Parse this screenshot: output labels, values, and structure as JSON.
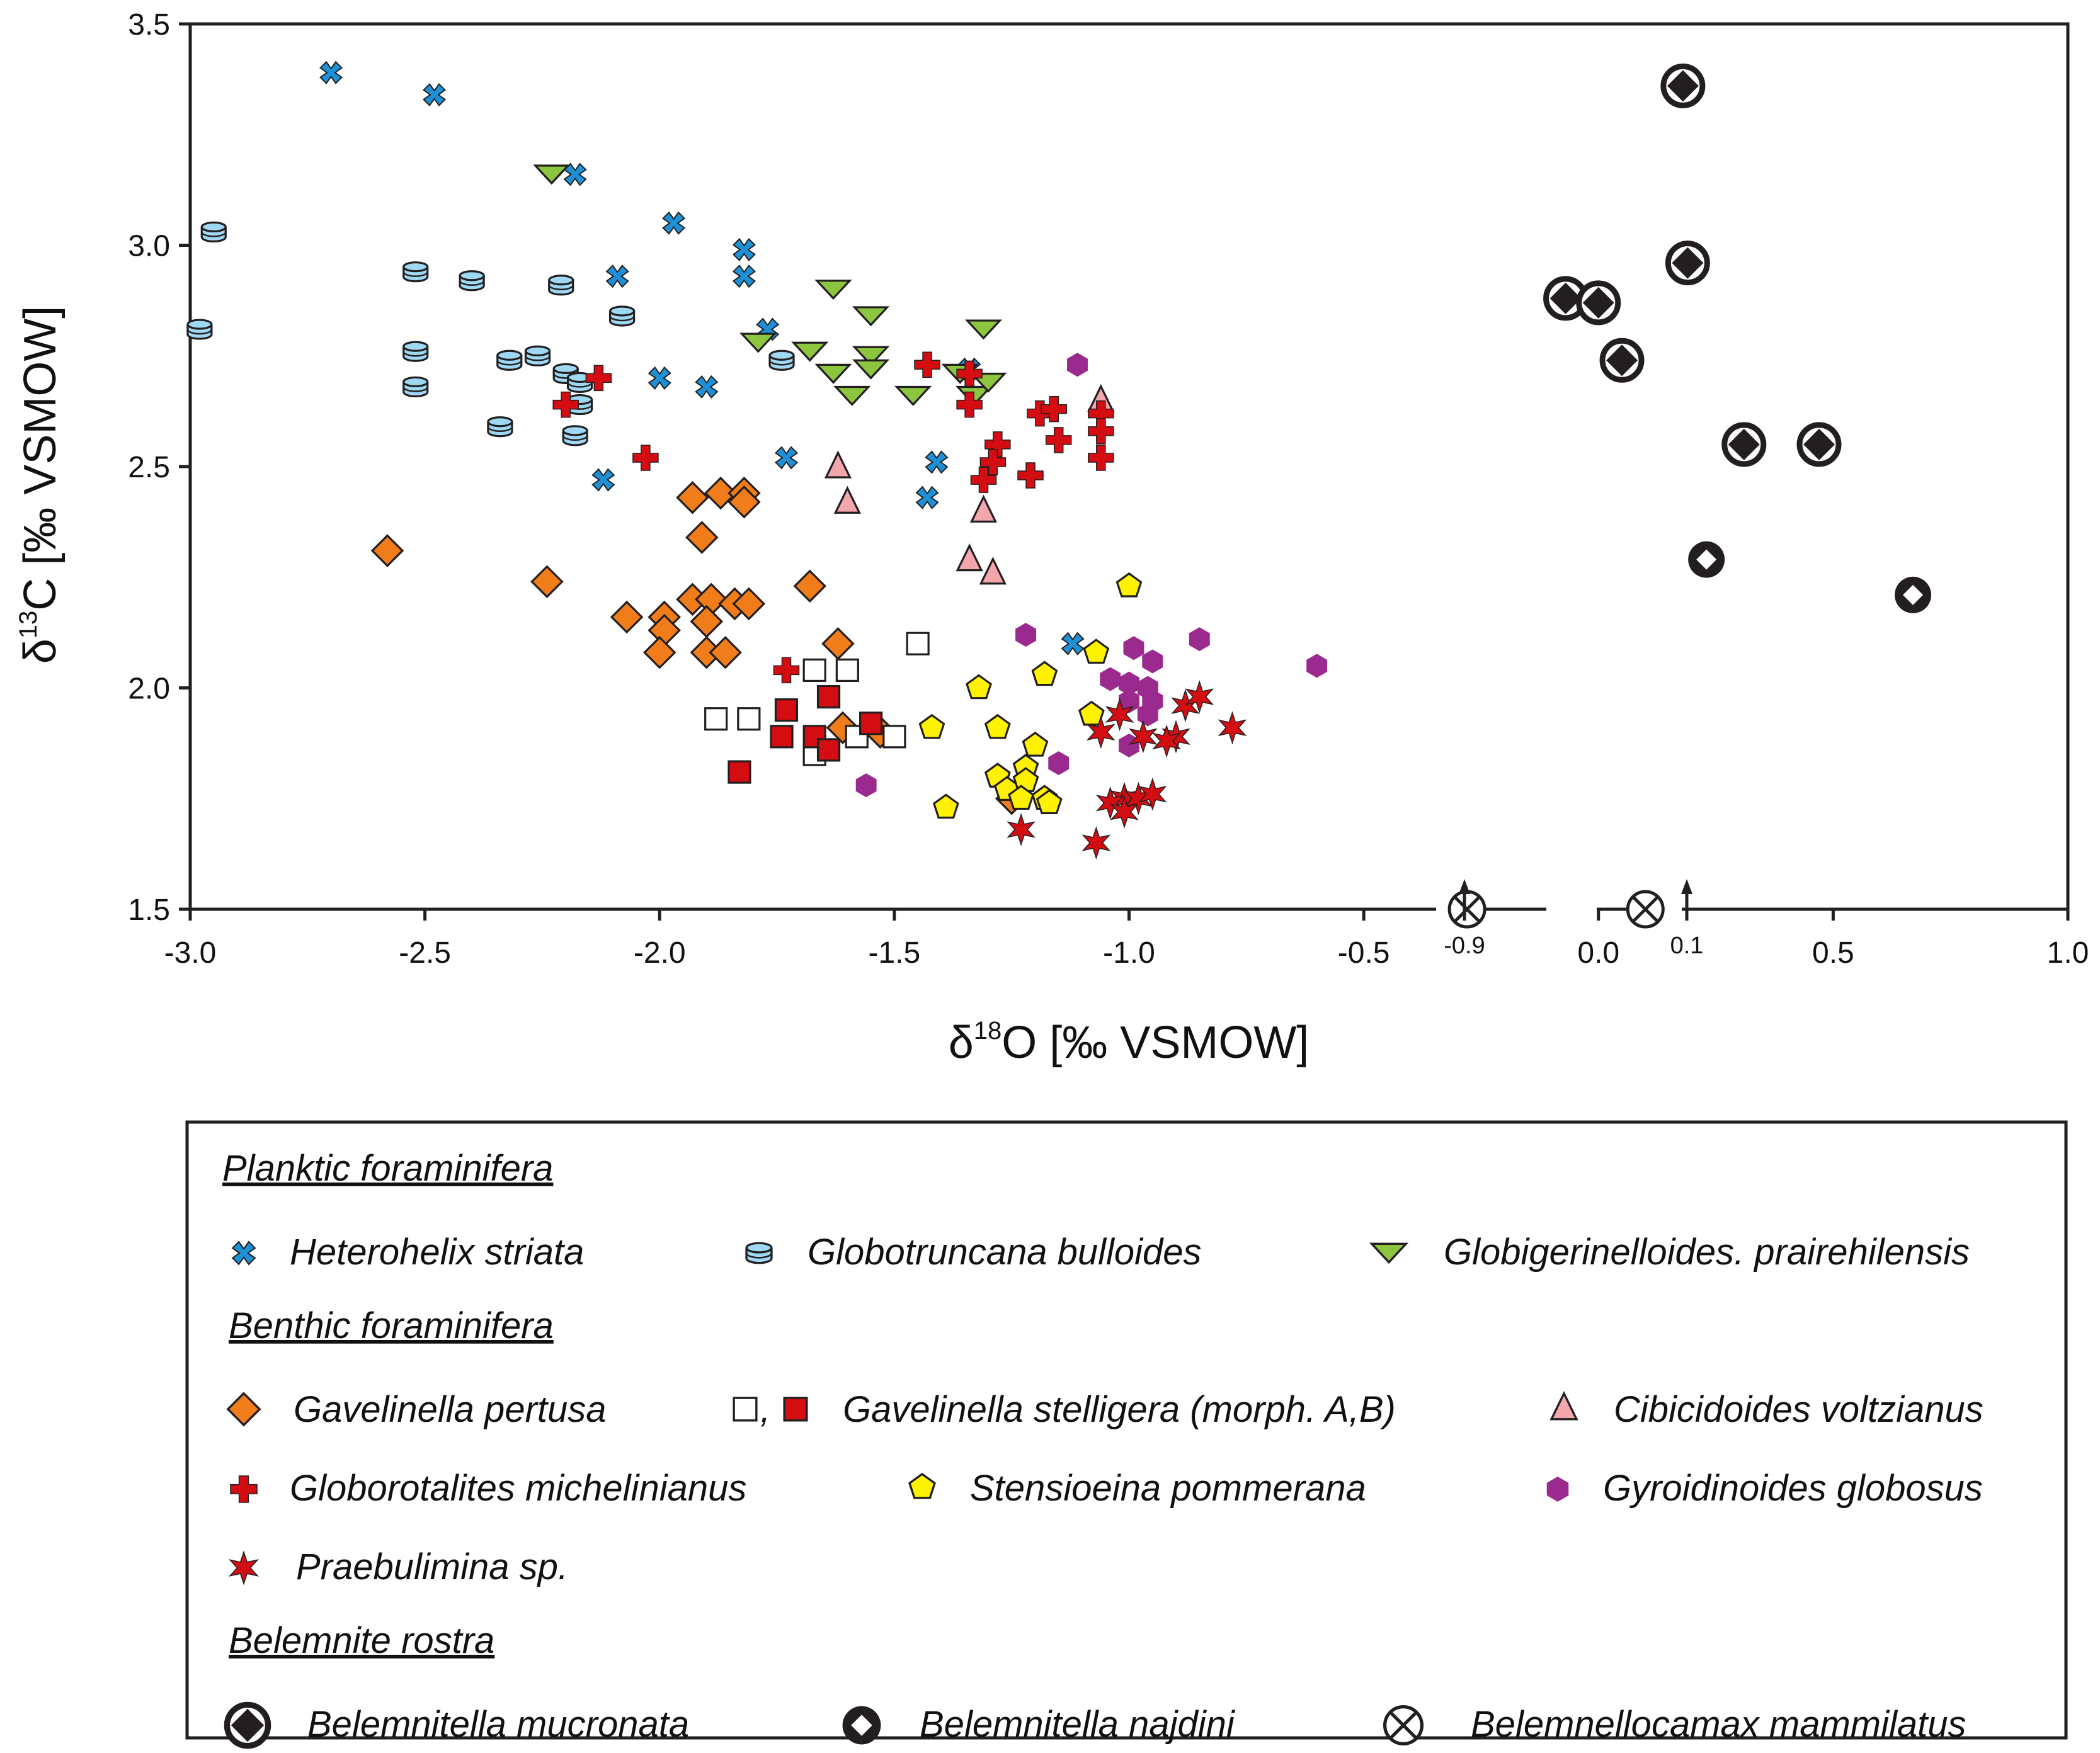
{
  "chart_data": {
    "type": "scatter",
    "xlabel": "δ18O [‰ VSMOW]",
    "ylabel": "δ13C [‰ VSMOW]",
    "xlim": [
      -3.0,
      1.0
    ],
    "ylim": [
      1.5,
      3.5
    ],
    "x_ticks": [
      "-3.0",
      "-2.5",
      "-2.0",
      "-1.5",
      "-1.0",
      "-0.5",
      "0.0",
      "0.5",
      "1.0"
    ],
    "y_ticks": [
      "1.5",
      "2.0",
      "2.5",
      "3.0",
      "3.5"
    ],
    "x_tick_values": [
      -3.0,
      -2.5,
      -2.0,
      -1.5,
      -1.0,
      -0.5,
      0.0,
      0.5,
      1.0
    ],
    "y_tick_values": [
      1.5,
      2.0,
      2.5,
      3.0,
      3.5
    ],
    "annotations": [
      {
        "text": "-0.9",
        "x": -0.28,
        "y": 1.5,
        "arrow": "up"
      },
      {
        "text": "0.1",
        "x": 0.18,
        "y": 1.5,
        "arrow": "up"
      }
    ],
    "legend": {
      "groups": [
        {
          "title": "Planktic foraminifera",
          "entries": [
            "Heterohelix striata",
            "Globotruncana bulloides",
            "Globigerinelloides. prairehilensis"
          ]
        },
        {
          "title": "Benthic foraminifera",
          "entries": [
            "Gavelinella pertusa",
            "Gavelinella stelligera (morph. A,B)",
            "Cibicidoides voltzianus",
            "Globorotalites michelinianus",
            "Stensioeina pommerana",
            "Gyroidinoides globosus",
            "Praebulimina sp."
          ]
        },
        {
          "title": "Belemnite rostra",
          "entries": [
            "Belemnitella mucronata",
            "Belemnitella najdini",
            "Belemnellocamax mammilatus"
          ]
        }
      ]
    },
    "series": [
      {
        "name": "Heterohelix striata",
        "marker": "x",
        "color": "#1e90d6",
        "points": [
          [
            -2.7,
            3.39
          ],
          [
            -2.48,
            3.34
          ],
          [
            -2.18,
            3.16
          ],
          [
            -1.97,
            3.05
          ],
          [
            -1.82,
            2.99
          ],
          [
            -1.82,
            2.93
          ],
          [
            -2.09,
            2.93
          ],
          [
            -1.77,
            2.81
          ],
          [
            -2.0,
            2.7
          ],
          [
            -1.9,
            2.68
          ],
          [
            -1.34,
            2.72
          ],
          [
            -2.12,
            2.47
          ],
          [
            -1.73,
            2.52
          ],
          [
            -1.41,
            2.51
          ],
          [
            -1.43,
            2.43
          ],
          [
            -1.12,
            2.1
          ]
        ]
      },
      {
        "name": "Globotruncana bulloides",
        "marker": "cylinder",
        "color": "#9fd8f3",
        "points": [
          [
            -2.95,
            3.03
          ],
          [
            -2.98,
            2.81
          ],
          [
            -2.52,
            2.94
          ],
          [
            -2.4,
            2.92
          ],
          [
            -2.21,
            2.91
          ],
          [
            -2.08,
            2.84
          ],
          [
            -2.52,
            2.76
          ],
          [
            -2.26,
            2.75
          ],
          [
            -2.32,
            2.74
          ],
          [
            -2.2,
            2.71
          ],
          [
            -2.17,
            2.69
          ],
          [
            -2.52,
            2.68
          ],
          [
            -2.17,
            2.64
          ],
          [
            -2.34,
            2.59
          ],
          [
            -2.18,
            2.57
          ],
          [
            -1.74,
            2.74
          ]
        ]
      },
      {
        "name": "Globigerinelloides. prairehilensis",
        "marker": "triangle-down",
        "color": "#8cc63f",
        "points": [
          [
            -2.23,
            3.16
          ],
          [
            -1.63,
            2.9
          ],
          [
            -1.55,
            2.84
          ],
          [
            -1.31,
            2.81
          ],
          [
            -1.79,
            2.78
          ],
          [
            -1.68,
            2.76
          ],
          [
            -1.55,
            2.75
          ],
          [
            -1.63,
            2.71
          ],
          [
            -1.59,
            2.66
          ],
          [
            -1.46,
            2.66
          ],
          [
            -1.36,
            2.71
          ],
          [
            -1.33,
            2.66
          ],
          [
            -1.3,
            2.69
          ],
          [
            -1.55,
            2.72
          ]
        ]
      },
      {
        "name": "Gavelinella pertusa",
        "marker": "diamond",
        "color": "#f07d1a",
        "points": [
          [
            -2.58,
            2.31
          ],
          [
            -2.24,
            2.24
          ],
          [
            -1.93,
            2.43
          ],
          [
            -1.87,
            2.44
          ],
          [
            -1.82,
            2.44
          ],
          [
            -1.82,
            2.42
          ],
          [
            -1.91,
            2.34
          ],
          [
            -1.68,
            2.23
          ],
          [
            -2.07,
            2.16
          ],
          [
            -1.99,
            2.16
          ],
          [
            -1.93,
            2.2
          ],
          [
            -1.89,
            2.2
          ],
          [
            -1.84,
            2.19
          ],
          [
            -1.81,
            2.19
          ],
          [
            -1.9,
            2.15
          ],
          [
            -1.99,
            2.13
          ],
          [
            -2.0,
            2.08
          ],
          [
            -1.9,
            2.08
          ],
          [
            -1.86,
            2.08
          ],
          [
            -1.62,
            2.1
          ],
          [
            -1.61,
            1.91
          ],
          [
            -1.53,
            1.9
          ],
          [
            -1.25,
            1.75
          ]
        ]
      },
      {
        "name": "Gavelinella stelligera (morph. A)",
        "marker": "square-open",
        "color": "#ffffff",
        "points": [
          [
            -1.45,
            2.1
          ],
          [
            -1.67,
            2.04
          ],
          [
            -1.6,
            2.04
          ],
          [
            -1.88,
            1.93
          ],
          [
            -1.81,
            1.93
          ],
          [
            -1.67,
            1.85
          ],
          [
            -1.58,
            1.89
          ],
          [
            -1.5,
            1.89
          ]
        ]
      },
      {
        "name": "Gavelinella stelligera (morph. B)",
        "marker": "square",
        "color": "#d40d12",
        "points": [
          [
            -1.73,
            1.95
          ],
          [
            -1.74,
            1.89
          ],
          [
            -1.64,
            1.98
          ],
          [
            -1.67,
            1.89
          ],
          [
            -1.64,
            1.86
          ],
          [
            -1.55,
            1.92
          ],
          [
            -1.83,
            1.81
          ]
        ]
      },
      {
        "name": "Cibicidoides voltzianus",
        "marker": "triangle-up",
        "color": "#f4a6ad",
        "points": [
          [
            -1.06,
            2.65
          ],
          [
            -1.62,
            2.5
          ],
          [
            -1.6,
            2.42
          ],
          [
            -1.31,
            2.4
          ],
          [
            -1.34,
            2.29
          ],
          [
            -1.29,
            2.26
          ]
        ]
      },
      {
        "name": "Globorotalites michelinianus",
        "marker": "plus",
        "color": "#d40d12",
        "points": [
          [
            -2.13,
            2.7
          ],
          [
            -2.2,
            2.64
          ],
          [
            -2.03,
            2.52
          ],
          [
            -1.43,
            2.73
          ],
          [
            -1.34,
            2.71
          ],
          [
            -1.34,
            2.64
          ],
          [
            -1.19,
            2.62
          ],
          [
            -1.16,
            2.63
          ],
          [
            -1.06,
            2.62
          ],
          [
            -1.06,
            2.58
          ],
          [
            -1.28,
            2.55
          ],
          [
            -1.15,
            2.56
          ],
          [
            -1.29,
            2.51
          ],
          [
            -1.31,
            2.47
          ],
          [
            -1.21,
            2.48
          ],
          [
            -1.06,
            2.52
          ],
          [
            -1.73,
            2.04
          ]
        ]
      },
      {
        "name": "Stensioeina pommerana",
        "marker": "pentagon",
        "color": "#fff200",
        "points": [
          [
            -1.0,
            2.23
          ],
          [
            -1.32,
            2.0
          ],
          [
            -1.18,
            2.03
          ],
          [
            -1.07,
            2.08
          ],
          [
            -1.08,
            1.94
          ],
          [
            -1.42,
            1.91
          ],
          [
            -1.28,
            1.91
          ],
          [
            -1.2,
            1.87
          ],
          [
            -1.22,
            1.82
          ],
          [
            -1.28,
            1.8
          ],
          [
            -1.26,
            1.77
          ],
          [
            -1.22,
            1.79
          ],
          [
            -1.23,
            1.75
          ],
          [
            -1.18,
            1.75
          ],
          [
            -1.17,
            1.74
          ],
          [
            -1.39,
            1.73
          ]
        ]
      },
      {
        "name": "Gyroidinoides globosus",
        "marker": "hexagon",
        "color": "#9b2a8f",
        "points": [
          [
            -1.11,
            2.73
          ],
          [
            -1.22,
            2.12
          ],
          [
            -0.99,
            2.09
          ],
          [
            -0.85,
            2.11
          ],
          [
            -0.6,
            2.05
          ],
          [
            -0.95,
            2.06
          ],
          [
            -1.04,
            2.02
          ],
          [
            -1.0,
            2.01
          ],
          [
            -0.96,
            2.0
          ],
          [
            -1.0,
            1.97
          ],
          [
            -0.96,
            1.94
          ],
          [
            -1.0,
            1.87
          ],
          [
            -1.15,
            1.83
          ],
          [
            -1.56,
            1.78
          ],
          [
            -0.95,
            1.97
          ]
        ]
      },
      {
        "name": "Praebulimina sp.",
        "marker": "star",
        "color": "#d40d12",
        "points": [
          [
            -1.06,
            1.9
          ],
          [
            -1.02,
            1.94
          ],
          [
            -0.97,
            1.89
          ],
          [
            -0.9,
            1.89
          ],
          [
            -0.88,
            1.96
          ],
          [
            -0.85,
            1.98
          ],
          [
            -0.78,
            1.91
          ],
          [
            -1.01,
            1.75
          ],
          [
            -1.04,
            1.74
          ],
          [
            -0.98,
            1.75
          ],
          [
            -0.95,
            1.76
          ],
          [
            -1.01,
            1.72
          ],
          [
            -1.23,
            1.68
          ],
          [
            -1.07,
            1.65
          ],
          [
            -0.92,
            1.88
          ]
        ]
      },
      {
        "name": "Belemnitella mucronata",
        "marker": "circle-diamond-filled",
        "color": "#231f20",
        "points": [
          [
            0.18,
            3.36
          ],
          [
            0.19,
            2.96
          ],
          [
            -0.07,
            2.88
          ],
          [
            0.0,
            2.87
          ],
          [
            0.05,
            2.74
          ],
          [
            0.31,
            2.55
          ],
          [
            0.47,
            2.55
          ]
        ]
      },
      {
        "name": "Belemnitella najdini",
        "marker": "circle-diamond-open",
        "color": "#231f20",
        "points": [
          [
            0.23,
            2.29
          ],
          [
            0.67,
            2.21
          ]
        ]
      },
      {
        "name": "Belemnellocamax mammilatus",
        "marker": "circle-cross",
        "color": "#231f20",
        "points": [
          [
            -0.28,
            1.5
          ],
          [
            0.1,
            1.5
          ]
        ]
      }
    ]
  }
}
